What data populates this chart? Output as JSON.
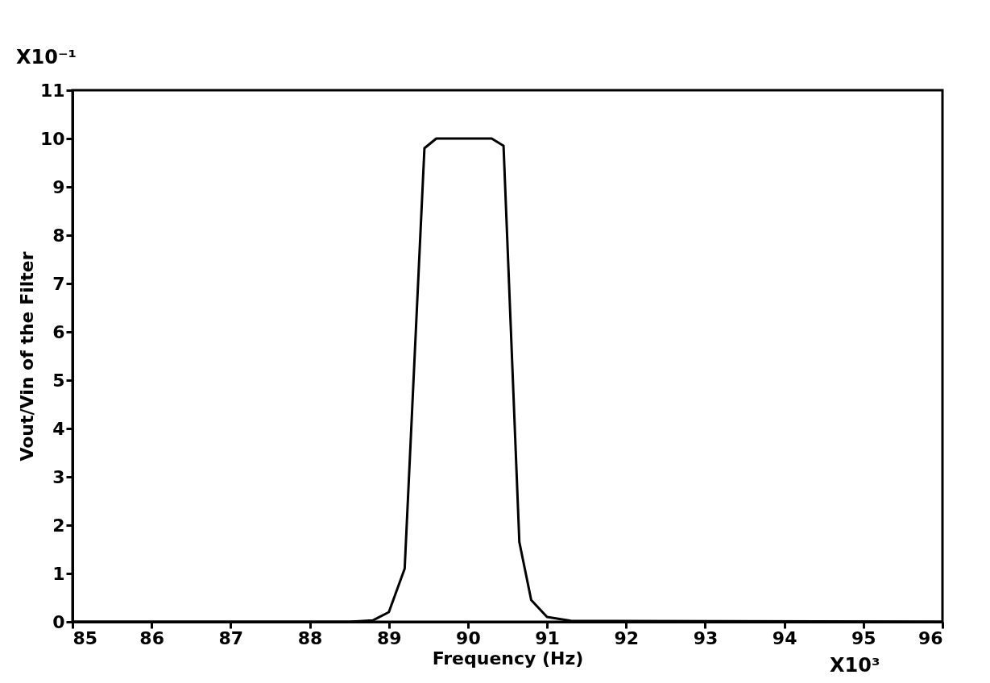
{
  "chart_data": {
    "type": "line",
    "xlabel": "Frequency (Hz)",
    "ylabel": "Vout/Vin of the Filter",
    "annotations": [
      "X10⁻¹",
      "X10³"
    ],
    "series": [
      {
        "color": "#000000",
        "x": [
          85,
          88.5,
          88.8,
          89.0,
          89.2,
          89.45,
          89.6,
          90.3,
          90.45,
          90.65,
          90.8,
          91.0,
          91.3,
          96
        ],
        "values": [
          0,
          0,
          0.03,
          0.2,
          1.1,
          9.8,
          10,
          10,
          9.85,
          1.65,
          0.45,
          0.1,
          0.02,
          0
        ]
      }
    ],
    "xlim": [
      85,
      96
    ],
    "xticks": [
      85,
      86,
      87,
      88,
      89,
      90,
      91,
      92,
      93,
      94,
      95,
      96
    ],
    "ylim": [
      0,
      11
    ],
    "yticks": [
      0,
      1,
      2,
      3,
      4,
      5,
      6,
      7,
      8,
      9,
      10,
      11
    ],
    "grid": false,
    "marker": "none",
    "line_style": "solid"
  }
}
